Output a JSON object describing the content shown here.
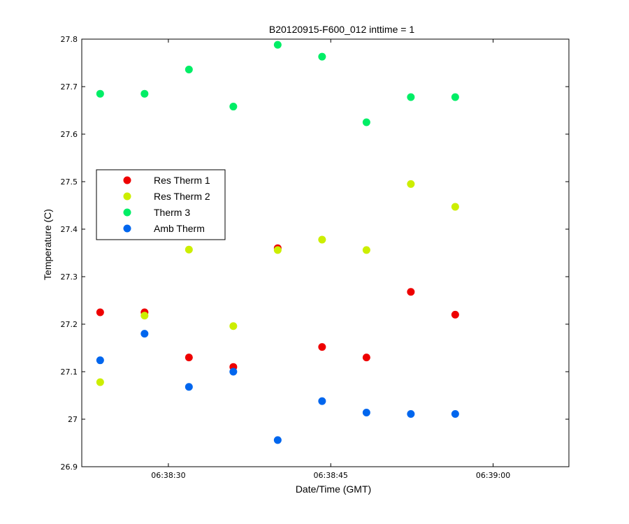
{
  "chart_data": {
    "type": "scatter",
    "title": "B20120915-F600_012 inttime = 1",
    "xlabel": "Date/Time (GMT)",
    "ylabel": "Temperature (C)",
    "xlim": [
      "06:38:22",
      "06:39:07"
    ],
    "ylim": [
      26.9,
      27.8
    ],
    "x_tick_labels": [
      "06:38:30",
      "06:38:45",
      "06:39:00"
    ],
    "y_tick_labels": [
      "26.9",
      "27",
      "27.1",
      "27.2",
      "27.3",
      "27.4",
      "27.5",
      "27.6",
      "27.7",
      "27.8"
    ],
    "legend_position": "left-middle",
    "grid": false,
    "x": [
      "06:38:23.7",
      "06:38:27.8",
      "06:38:31.9",
      "06:38:36.0",
      "06:38:40.1",
      "06:38:44.2",
      "06:38:48.3",
      "06:38:52.4",
      "06:38:56.5"
    ],
    "series": [
      {
        "name": "Res Therm 1",
        "color": "#ee0000",
        "values": [
          27.225,
          27.225,
          27.13,
          27.11,
          27.36,
          27.152,
          27.13,
          27.268,
          27.22
        ]
      },
      {
        "name": "Res Therm 2",
        "color": "#ccee00",
        "values": [
          27.078,
          27.218,
          27.357,
          27.196,
          27.356,
          27.378,
          27.356,
          27.495,
          27.447
        ]
      },
      {
        "name": "Therm 3",
        "color": "#00ee66",
        "values": [
          27.685,
          27.685,
          27.736,
          27.658,
          27.788,
          27.763,
          27.625,
          27.678,
          27.678
        ]
      },
      {
        "name": "Amb Therm",
        "color": "#0066ee",
        "values": [
          27.124,
          27.18,
          27.068,
          27.1,
          26.956,
          27.038,
          27.014,
          27.011,
          27.011
        ]
      }
    ]
  }
}
